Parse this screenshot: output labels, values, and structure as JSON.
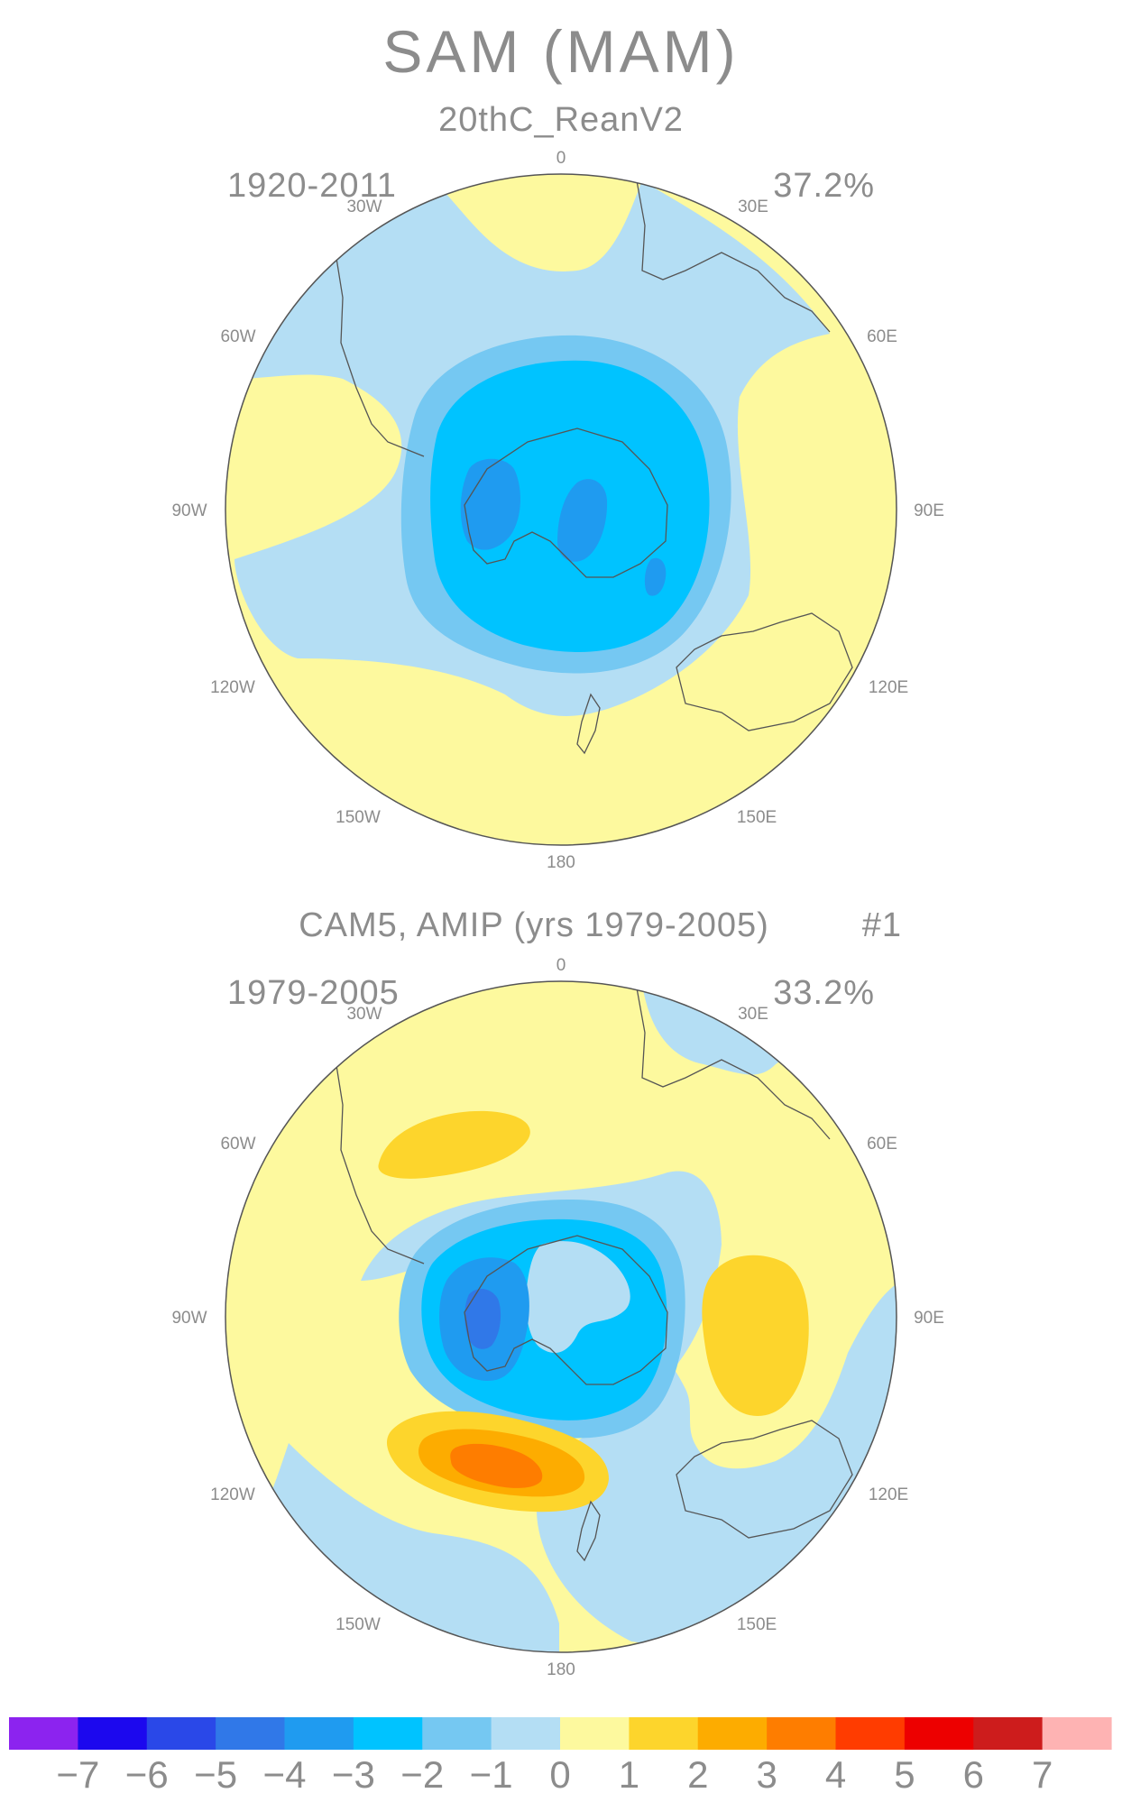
{
  "figure": {
    "title": "SAM (MAM)",
    "colorbar": {
      "colors": [
        "#8c23ef",
        "#1c08ee",
        "#2a48e8",
        "#3078e8",
        "#1f9bf0",
        "#00c3ff",
        "#75c8f2",
        "#b4def4",
        "#fdf99e",
        "#fdd52c",
        "#fdac00",
        "#fe7d00",
        "#ff3c00",
        "#ed0000",
        "#cd1c1c",
        "#feb3b3"
      ],
      "labels": [
        "−7",
        "−6",
        "−5",
        "−4",
        "−3",
        "−2",
        "−1",
        "0",
        "1",
        "2",
        "3",
        "4",
        "5",
        "6",
        "7"
      ]
    }
  },
  "colors": {
    "text": "#8c8c8c",
    "coast": "#555555",
    "c_m4": "#3078e8",
    "c_m3": "#1f9bf0",
    "c_m2": "#00c3ff",
    "c_m1": "#75c8f2",
    "c_n0": "#b4def4",
    "c_p0": "#fdf99e",
    "c_p1": "#fdd52c",
    "c_p2": "#fdac00",
    "c_p3": "#fe7d00"
  },
  "panels": [
    {
      "title": "20thC_ReanV2",
      "period": "1920-2011",
      "variance": "37.2%",
      "run": "",
      "lon_labels": {
        "l0": "0",
        "l30w": "30W",
        "l30e": "30E",
        "l60w": "60W",
        "l60e": "60E",
        "l90w": "90W",
        "l90e": "90E",
        "l120w": "120W",
        "l120e": "120E",
        "l150w": "150W",
        "l150e": "150E",
        "l180": "180"
      }
    },
    {
      "title": "CAM5, AMIP (yrs 1979-2005)",
      "period": "1979-2005",
      "variance": "33.2%",
      "run": "#1",
      "lon_labels": {
        "l0": "0",
        "l30w": "30W",
        "l30e": "30E",
        "l60w": "60W",
        "l60e": "60E",
        "l90w": "90W",
        "l90e": "90E",
        "l120w": "120W",
        "l120e": "120E",
        "l150w": "150W",
        "l150e": "150E",
        "l180": "180"
      }
    }
  ]
}
